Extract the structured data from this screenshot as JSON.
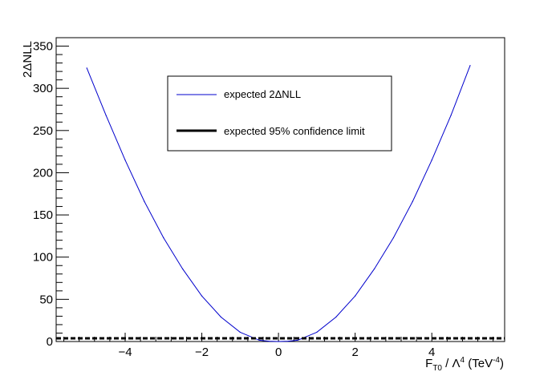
{
  "chart_data": {
    "type": "line",
    "ylabel": "2ΔNLL",
    "xlabel": {
      "main": "F",
      "subscript": "T0",
      "mid": " / Λ",
      "superscript": "4",
      "unit_open": " (TeV",
      "unit_sup": "-4",
      "unit_close": ")"
    },
    "xlim": [
      -5.8,
      5.9
    ],
    "ylim": [
      0,
      360
    ],
    "x_ticks": [
      -4,
      -2,
      0,
      2,
      4
    ],
    "x_tick_labels": [
      "−4",
      "−2",
      "0",
      "2",
      "4"
    ],
    "y_ticks": [
      0,
      50,
      100,
      150,
      200,
      250,
      300,
      350
    ],
    "y_tick_labels": [
      "0",
      "50",
      "100",
      "150",
      "200",
      "250",
      "300",
      "350"
    ],
    "grid": false,
    "legend": {
      "placement": "top-center",
      "entries": [
        {
          "label": "expected 2ΔNLL",
          "color": "#0000cc",
          "style": "thin-line"
        },
        {
          "label": "expected 95% confidence limit",
          "color": "#000000",
          "style": "thick-line"
        }
      ]
    },
    "series": [
      {
        "name": "expected 2ΔNLL",
        "color": "#0000cc",
        "x": [
          -5.0,
          -4.5,
          -4.0,
          -3.5,
          -3.0,
          -2.5,
          -2.0,
          -1.5,
          -1.0,
          -0.5,
          -0.25,
          0.0,
          0.25,
          0.5,
          1.0,
          1.5,
          2.0,
          2.5,
          3.0,
          3.5,
          4.0,
          4.5,
          5.0
        ],
        "y": [
          324,
          268,
          215,
          166,
          123,
          86,
          54,
          29,
          11,
          1.5,
          0.3,
          0.0,
          0.3,
          1.5,
          11,
          29,
          54,
          86,
          123,
          166,
          215,
          268,
          327
        ]
      },
      {
        "name": "expected 95% confidence limit",
        "color": "#000000",
        "x": [
          -5.8,
          5.9
        ],
        "y": [
          3.84,
          3.84
        ]
      }
    ]
  }
}
